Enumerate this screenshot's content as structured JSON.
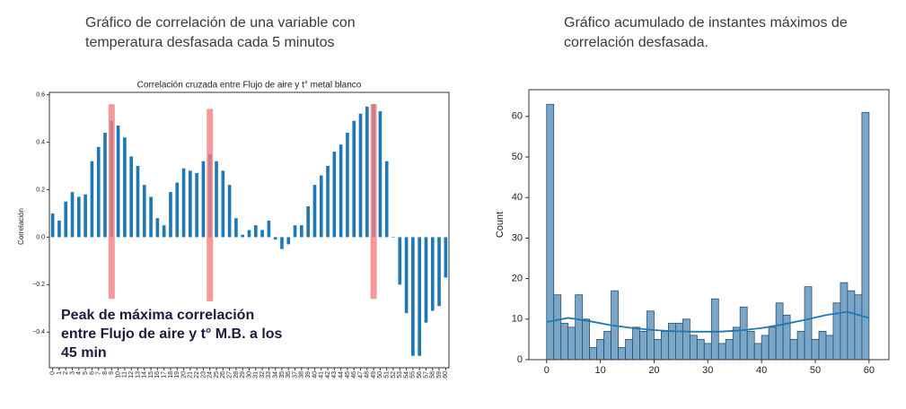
{
  "headings": {
    "left": [
      "Gráfico de correlación de una variable con",
      "temperatura desfasada cada 5 minutos"
    ],
    "right": [
      "Gráfico acumulado de instantes máximos de",
      "correlación desfasada."
    ]
  },
  "chart_data": [
    {
      "type": "bar",
      "title": "Correlación cruzada entre Flujo de aire y t° metal blanco",
      "y_label": "Correlación",
      "categories": [
        "0",
        "1",
        "2",
        "3",
        "4",
        "5",
        "6",
        "7",
        "8",
        "9",
        "10",
        "11",
        "12",
        "13",
        "14",
        "15",
        "16",
        "17",
        "18",
        "19",
        "20",
        "21",
        "22",
        "23",
        "24",
        "25",
        "26",
        "27",
        "28",
        "29",
        "30",
        "31",
        "32",
        "33",
        "34",
        "35",
        "36",
        "37",
        "38",
        "39",
        "40",
        "41",
        "42",
        "43",
        "44",
        "45",
        "46",
        "47",
        "48",
        "49",
        "50",
        "51",
        "52",
        "53",
        "54",
        "55",
        "56",
        "57",
        "58",
        "59",
        "60"
      ],
      "values": [
        0.1,
        0.07,
        0.15,
        0.19,
        0.17,
        0.18,
        0.32,
        0.38,
        0.44,
        0.49,
        0.47,
        0.42,
        0.34,
        0.3,
        0.22,
        0.17,
        0.08,
        0.05,
        0.19,
        0.23,
        0.29,
        0.28,
        0.27,
        0.32,
        0.35,
        0.32,
        0.28,
        0.22,
        0.08,
        0.01,
        0.03,
        0.05,
        0.03,
        0.07,
        -0.01,
        -0.05,
        -0.03,
        0.05,
        0.05,
        0.13,
        0.22,
        0.26,
        0.3,
        0.36,
        0.39,
        0.44,
        0.49,
        0.52,
        0.55,
        0.56,
        0.53,
        0.32,
        0.0,
        -0.2,
        -0.32,
        -0.5,
        -0.5,
        -0.36,
        -0.31,
        -0.29,
        -0.17
      ],
      "color": "#1f77b4",
      "ylim": [
        -0.55,
        0.64
      ],
      "yticks": [
        {
          "value": -0.4,
          "label": "−0.4"
        },
        {
          "value": -0.2,
          "label": "−0.2"
        },
        {
          "value": 0,
          "label": "0.0"
        },
        0.2,
        0.4,
        0.6
      ],
      "highlights": [
        {
          "index": 9,
          "low": -0.26,
          "high": 0.56
        },
        {
          "index": 24,
          "low": -0.27,
          "high": 0.54
        },
        {
          "index": 49,
          "low": -0.26,
          "high": 0.56
        }
      ],
      "highlight_color": "#f08080",
      "annotation": [
        "Peak de máxima correlación",
        "entre Flujo de aire y t° M.B. a los",
        "45 min"
      ]
    },
    {
      "type": "histogram",
      "y_label": "Count",
      "bins": [
        0,
        1.33,
        2.67,
        4,
        5.33,
        6.67,
        8,
        9.33,
        10.67,
        12,
        13.33,
        14.67,
        16,
        17.33,
        18.67,
        20,
        21.33,
        22.67,
        24,
        25.33,
        26.67,
        28,
        29.33,
        30.67,
        32,
        33.33,
        34.67,
        36,
        37.33,
        38.67,
        40,
        41.33,
        42.67,
        44,
        45.33,
        46.67,
        48,
        49.33,
        50.67,
        52,
        53.33,
        54.67,
        56,
        57.33,
        58.67,
        60
      ],
      "values": [
        63,
        16,
        9,
        8,
        16,
        10,
        3,
        5,
        7,
        17,
        3,
        5,
        8,
        7,
        12,
        5,
        7,
        9,
        9,
        10,
        6,
        5,
        4,
        15,
        4,
        5,
        8,
        13,
        7,
        4,
        6,
        8,
        14,
        11,
        5,
        7,
        18,
        5,
        7,
        6,
        14,
        19,
        17,
        16,
        61
      ],
      "color": "#7aa6c8",
      "kde": {
        "x": [
          0,
          4,
          8,
          12,
          16,
          20,
          24,
          28,
          32,
          36,
          40,
          44,
          48,
          52,
          56,
          60
        ],
        "y": [
          9.3,
          10.3,
          9.5,
          8.5,
          7.8,
          7.3,
          7.0,
          6.9,
          6.9,
          7.2,
          7.8,
          8.7,
          9.8,
          11.0,
          11.8,
          10.3
        ],
        "color": "#1f77b4"
      },
      "xlim": [
        -3.3,
        63.7
      ],
      "ylim": [
        0,
        66.6
      ],
      "xticks": [
        0,
        10,
        20,
        30,
        40,
        50,
        60
      ],
      "yticks": [
        0,
        10,
        20,
        30,
        40,
        50,
        60
      ]
    }
  ]
}
